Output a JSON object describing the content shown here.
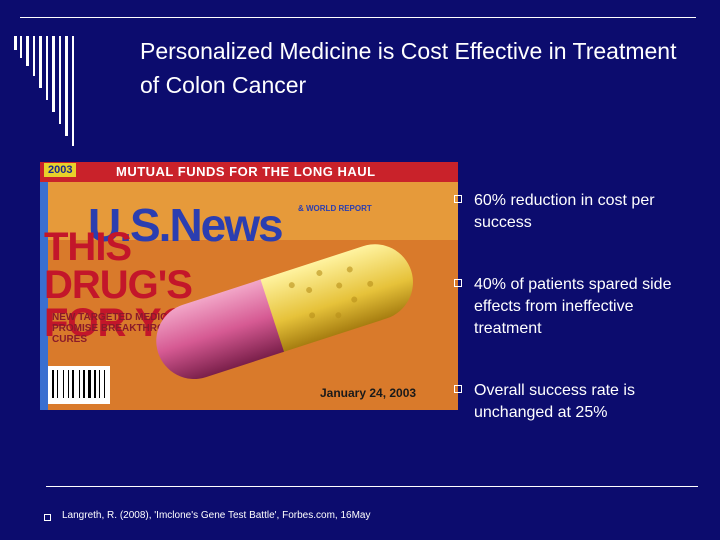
{
  "slide": {
    "title": "Personalized Medicine is Cost Effective in Treatment of Colon Cancer",
    "bullets": [
      "60% reduction in cost per success",
      "40% of patients spared side effects from ineffective treatment",
      "Overall success rate is unchanged at 25%"
    ],
    "footer": "Langreth, R. (2008), 'Imclone's Gene Test Battle', Forbes.com, 16May"
  },
  "magazine": {
    "issue_tag": "2003",
    "top_headline": "MUTUAL FUNDS FOR THE LONG HAUL",
    "logo": "U.S.News",
    "logo_sub": "& WORLD REPORT",
    "headline": "THIS DRUG'S FOR YOU",
    "subhead": "NEW TARGETED MEDICINES PROMISE BREAKTHROUGH CURES",
    "date": "January 24, 2003"
  },
  "colors": {
    "background": "#0c0c6e",
    "text": "#ffffff"
  }
}
